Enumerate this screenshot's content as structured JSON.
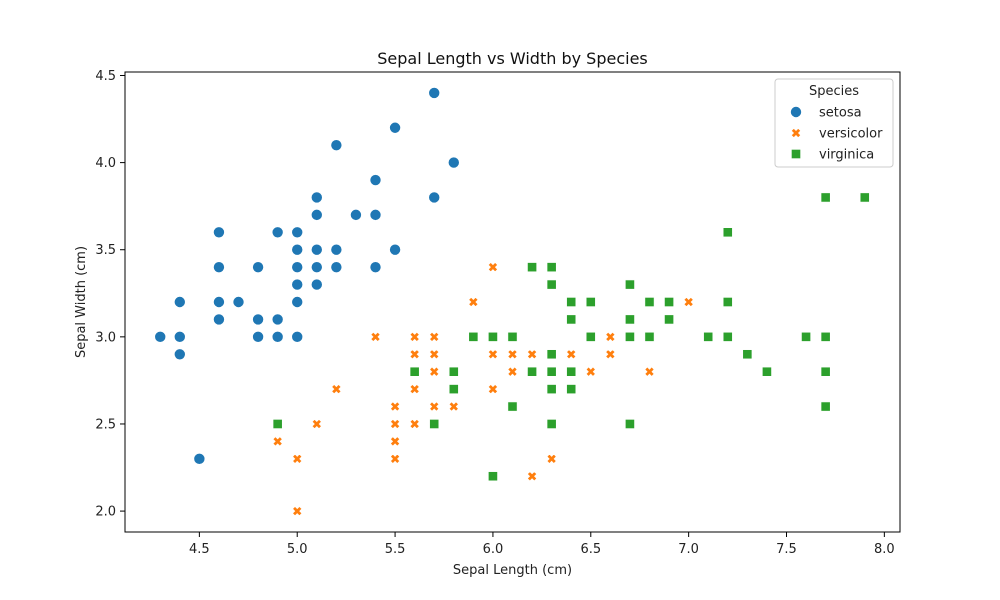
{
  "chart_data": {
    "type": "scatter",
    "title": "Sepal Length vs Width by Species",
    "xlabel": "Sepal Length (cm)",
    "ylabel": "Sepal Width (cm)",
    "xlim": [
      4.12,
      8.08
    ],
    "ylim": [
      1.88,
      4.52
    ],
    "xticks": [
      4.5,
      5.0,
      5.5,
      6.0,
      6.5,
      7.0,
      7.5,
      8.0
    ],
    "xtick_labels": [
      "4.5",
      "5.0",
      "5.5",
      "6.0",
      "6.5",
      "7.0",
      "7.5",
      "8.0"
    ],
    "yticks": [
      2.0,
      2.5,
      3.0,
      3.5,
      4.0,
      4.5
    ],
    "ytick_labels": [
      "2.0",
      "2.5",
      "3.0",
      "3.5",
      "4.0",
      "4.5"
    ],
    "grid": false,
    "legend": {
      "title": "Species",
      "placement": "top-right"
    },
    "series": [
      {
        "name": "setosa",
        "marker": "circle",
        "color": "#1f77b4",
        "points": [
          [
            5.1,
            3.5
          ],
          [
            4.9,
            3.0
          ],
          [
            4.7,
            3.2
          ],
          [
            4.6,
            3.1
          ],
          [
            5.0,
            3.6
          ],
          [
            5.4,
            3.9
          ],
          [
            4.6,
            3.4
          ],
          [
            5.0,
            3.4
          ],
          [
            4.4,
            2.9
          ],
          [
            4.9,
            3.1
          ],
          [
            5.4,
            3.7
          ],
          [
            4.8,
            3.4
          ],
          [
            4.8,
            3.0
          ],
          [
            4.3,
            3.0
          ],
          [
            5.8,
            4.0
          ],
          [
            5.7,
            4.4
          ],
          [
            5.4,
            3.9
          ],
          [
            5.1,
            3.5
          ],
          [
            5.7,
            3.8
          ],
          [
            5.1,
            3.8
          ],
          [
            5.4,
            3.4
          ],
          [
            5.1,
            3.7
          ],
          [
            4.6,
            3.6
          ],
          [
            5.1,
            3.3
          ],
          [
            4.8,
            3.4
          ],
          [
            5.0,
            3.0
          ],
          [
            5.0,
            3.4
          ],
          [
            5.2,
            3.5
          ],
          [
            5.2,
            3.4
          ],
          [
            4.7,
            3.2
          ],
          [
            4.8,
            3.1
          ],
          [
            5.4,
            3.4
          ],
          [
            5.2,
            4.1
          ],
          [
            5.5,
            4.2
          ],
          [
            4.9,
            3.1
          ],
          [
            5.0,
            3.2
          ],
          [
            5.5,
            3.5
          ],
          [
            4.9,
            3.6
          ],
          [
            4.4,
            3.0
          ],
          [
            5.1,
            3.4
          ],
          [
            5.0,
            3.5
          ],
          [
            4.5,
            2.3
          ],
          [
            4.4,
            3.2
          ],
          [
            5.0,
            3.5
          ],
          [
            5.1,
            3.8
          ],
          [
            4.8,
            3.0
          ],
          [
            5.1,
            3.8
          ],
          [
            4.6,
            3.2
          ],
          [
            5.3,
            3.7
          ],
          [
            5.0,
            3.3
          ]
        ]
      },
      {
        "name": "versicolor",
        "marker": "x",
        "color": "#ff7f0e",
        "points": [
          [
            7.0,
            3.2
          ],
          [
            6.4,
            3.2
          ],
          [
            6.9,
            3.1
          ],
          [
            5.5,
            2.3
          ],
          [
            6.5,
            2.8
          ],
          [
            5.7,
            2.8
          ],
          [
            6.3,
            3.3
          ],
          [
            4.9,
            2.4
          ],
          [
            6.6,
            2.9
          ],
          [
            5.2,
            2.7
          ],
          [
            5.0,
            2.0
          ],
          [
            5.9,
            3.0
          ],
          [
            6.0,
            2.2
          ],
          [
            6.1,
            2.9
          ],
          [
            5.6,
            2.9
          ],
          [
            6.7,
            3.1
          ],
          [
            5.6,
            3.0
          ],
          [
            5.8,
            2.7
          ],
          [
            6.2,
            2.2
          ],
          [
            5.6,
            2.5
          ],
          [
            5.9,
            3.2
          ],
          [
            6.1,
            2.8
          ],
          [
            6.3,
            2.5
          ],
          [
            6.1,
            2.8
          ],
          [
            6.4,
            2.9
          ],
          [
            6.6,
            3.0
          ],
          [
            6.8,
            2.8
          ],
          [
            6.7,
            3.0
          ],
          [
            6.0,
            2.9
          ],
          [
            5.7,
            2.6
          ],
          [
            5.5,
            2.4
          ],
          [
            5.5,
            2.4
          ],
          [
            5.8,
            2.7
          ],
          [
            6.0,
            2.7
          ],
          [
            5.4,
            3.0
          ],
          [
            6.0,
            3.4
          ],
          [
            6.7,
            3.1
          ],
          [
            6.3,
            2.3
          ],
          [
            5.6,
            3.0
          ],
          [
            5.5,
            2.5
          ],
          [
            5.5,
            2.6
          ],
          [
            6.1,
            3.0
          ],
          [
            5.8,
            2.6
          ],
          [
            5.0,
            2.3
          ],
          [
            5.6,
            2.7
          ],
          [
            5.7,
            3.0
          ],
          [
            5.7,
            2.9
          ],
          [
            6.2,
            2.9
          ],
          [
            5.1,
            2.5
          ],
          [
            5.7,
            2.8
          ]
        ]
      },
      {
        "name": "virginica",
        "marker": "square",
        "color": "#2ca02c",
        "points": [
          [
            6.3,
            3.3
          ],
          [
            5.8,
            2.7
          ],
          [
            7.1,
            3.0
          ],
          [
            6.3,
            2.9
          ],
          [
            6.5,
            3.0
          ],
          [
            7.6,
            3.0
          ],
          [
            4.9,
            2.5
          ],
          [
            7.3,
            2.9
          ],
          [
            6.7,
            2.5
          ],
          [
            7.2,
            3.6
          ],
          [
            6.5,
            3.2
          ],
          [
            6.4,
            2.7
          ],
          [
            6.8,
            3.0
          ],
          [
            5.7,
            2.5
          ],
          [
            5.8,
            2.8
          ],
          [
            6.4,
            3.2
          ],
          [
            6.5,
            3.0
          ],
          [
            7.7,
            3.8
          ],
          [
            7.7,
            2.6
          ],
          [
            6.0,
            2.2
          ],
          [
            6.9,
            3.2
          ],
          [
            5.6,
            2.8
          ],
          [
            7.7,
            2.8
          ],
          [
            6.3,
            2.7
          ],
          [
            6.7,
            3.3
          ],
          [
            7.2,
            3.2
          ],
          [
            6.2,
            2.8
          ],
          [
            6.1,
            3.0
          ],
          [
            6.4,
            2.8
          ],
          [
            7.2,
            3.0
          ],
          [
            7.4,
            2.8
          ],
          [
            7.9,
            3.8
          ],
          [
            6.4,
            2.8
          ],
          [
            6.3,
            2.8
          ],
          [
            6.1,
            2.6
          ],
          [
            7.7,
            3.0
          ],
          [
            6.3,
            3.4
          ],
          [
            6.4,
            3.1
          ],
          [
            6.0,
            3.0
          ],
          [
            6.9,
            3.1
          ],
          [
            6.7,
            3.1
          ],
          [
            6.9,
            3.1
          ],
          [
            5.8,
            2.7
          ],
          [
            6.8,
            3.2
          ],
          [
            6.7,
            3.3
          ],
          [
            6.7,
            3.0
          ],
          [
            6.3,
            2.5
          ],
          [
            6.5,
            3.0
          ],
          [
            6.2,
            3.4
          ],
          [
            5.9,
            3.0
          ]
        ]
      }
    ]
  }
}
